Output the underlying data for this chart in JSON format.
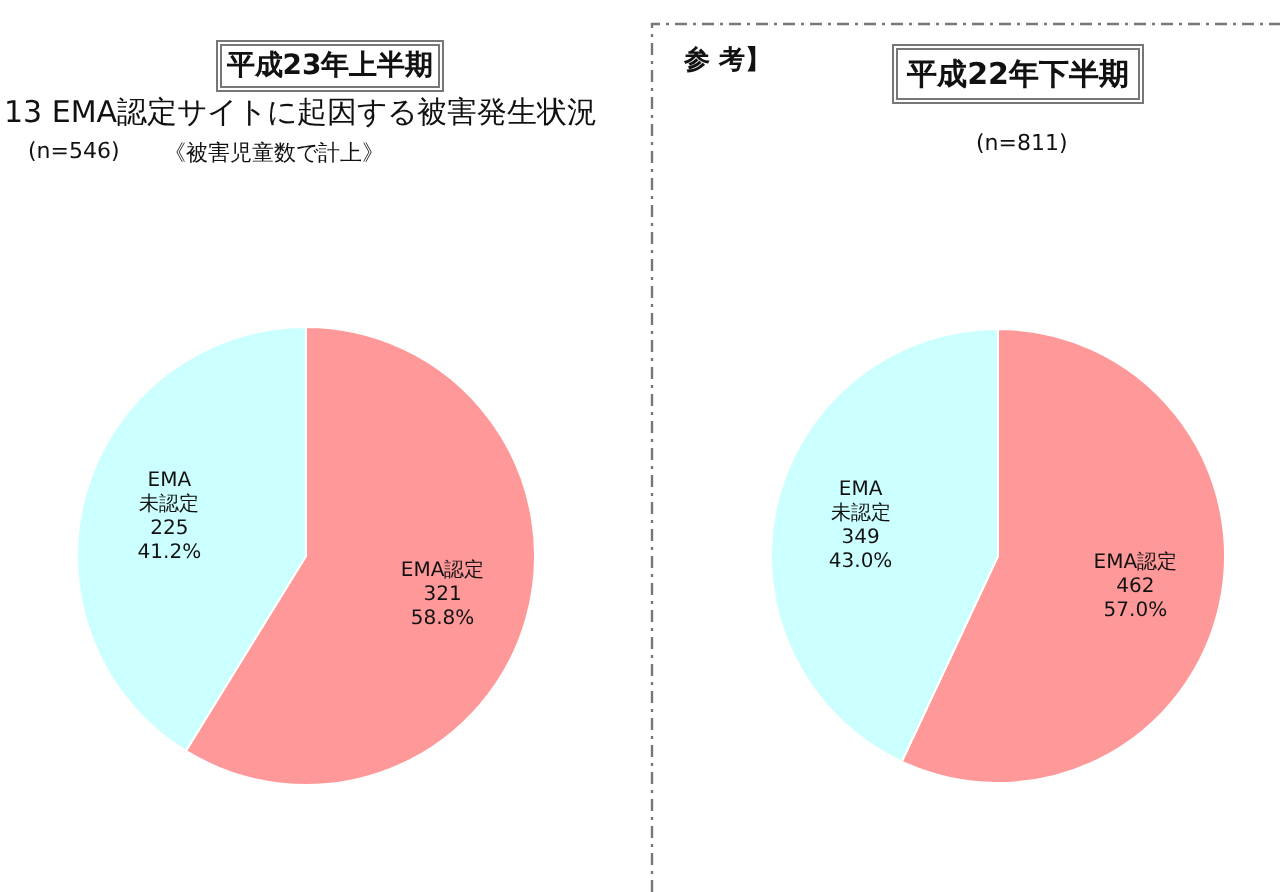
{
  "chart_data": [
    {
      "type": "pie",
      "title": "平成23年上半期",
      "subtitle": "13 EMA認定サイトに起因する被害発生状況",
      "annotations": [
        "(n=546)",
        "《被害児童数で計上》"
      ],
      "categories": [
        "EMA認定",
        "EMA未認定"
      ],
      "values": [
        321,
        225
      ],
      "colors": [
        "#ff9999",
        "#ccffff"
      ],
      "value_labels": [
        "321\n58.8%",
        "225\n41.2%"
      ]
    },
    {
      "type": "pie",
      "title": "平成22年下半期",
      "annotations": [
        "参 考】",
        "(n=811)"
      ],
      "categories": [
        "EMA認定",
        "EMA未認定"
      ],
      "values": [
        462,
        349
      ],
      "colors": [
        "#ff9999",
        "#ccffff"
      ],
      "value_labels": [
        "462\n57.0%",
        "349\n43.0%"
      ]
    }
  ]
}
